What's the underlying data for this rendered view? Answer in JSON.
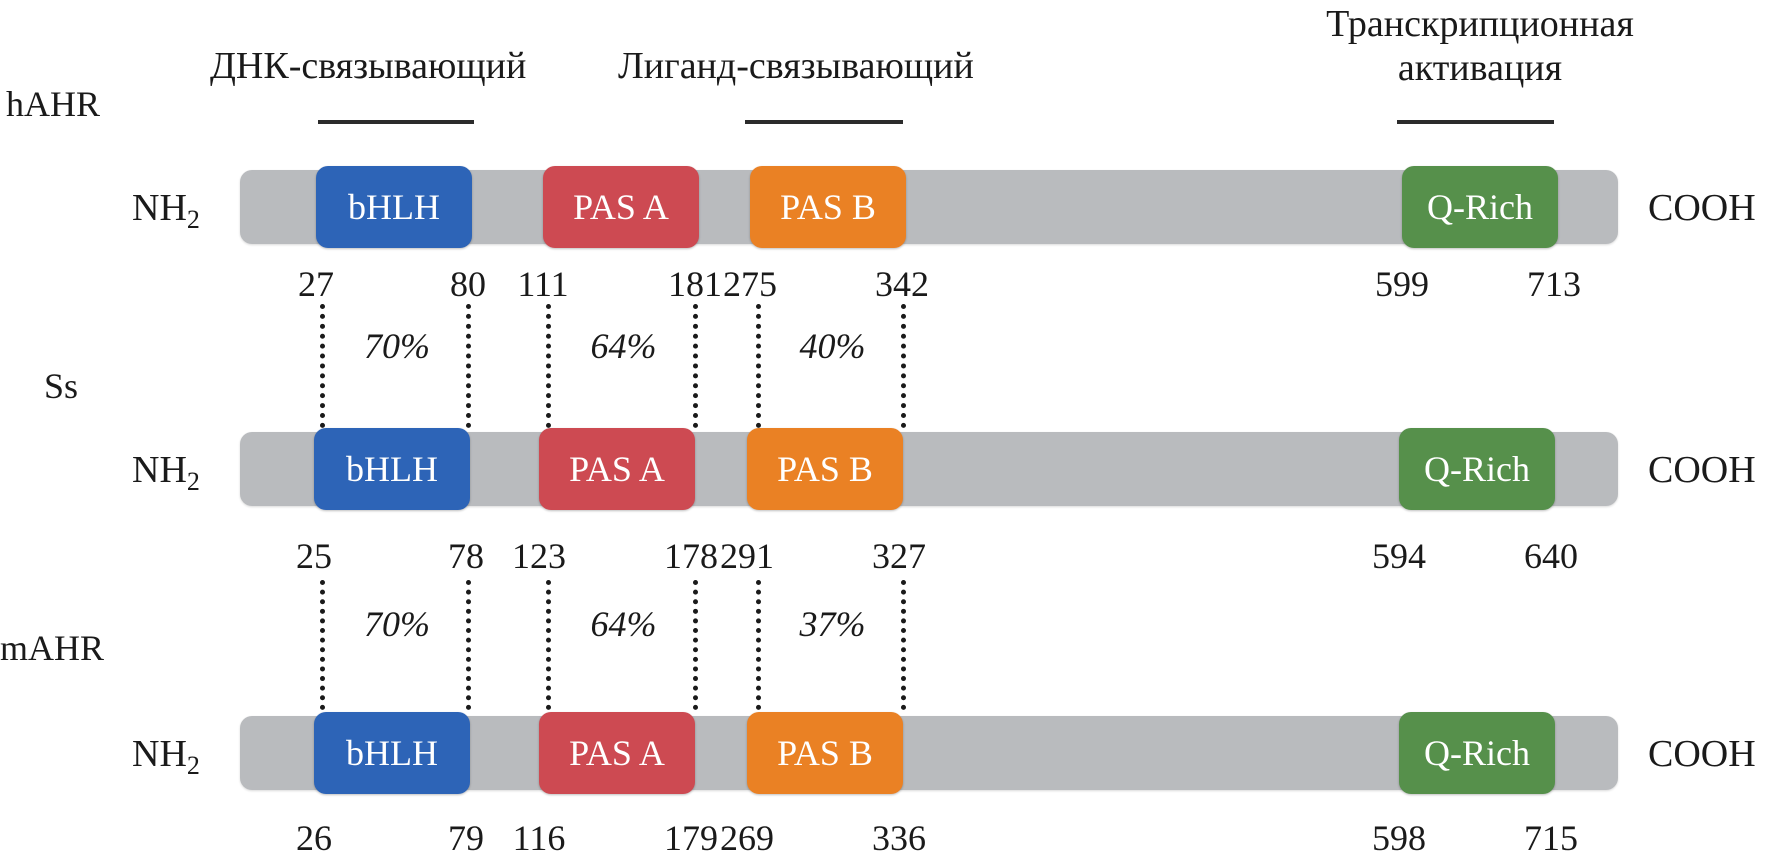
{
  "colors": {
    "protein_bar": "#b9bbbe",
    "bHLH": "#2d64b7",
    "PAS_A": "#cd4a52",
    "PAS_B": "#ea8124",
    "Q_Rich": "#56904b",
    "region_line": "#2b2b2b"
  },
  "regions": {
    "dna_binding": "ДНК-связывающий",
    "ligand_binding": "Лиганд-связывающий",
    "transcription_line1": "Транскрипционная",
    "transcription_line2": "активация"
  },
  "species": [
    "hAHR",
    "Ss",
    "mAHR"
  ],
  "terminals": {
    "n": "NH",
    "n_sub": "2",
    "c": "COOH"
  },
  "domains": [
    "bHLH",
    "PAS A",
    "PAS B",
    "Q-Rich"
  ],
  "proteins": [
    {
      "positions": [
        {
          "domain": "bHLH",
          "start": "27",
          "end": "80"
        },
        {
          "domain": "PAS A",
          "start": "111",
          "end": "181"
        },
        {
          "domain": "PAS B",
          "start": "275",
          "end": "342"
        },
        {
          "domain": "Q-Rich",
          "start": "599",
          "end": "713"
        }
      ]
    },
    {
      "positions": [
        {
          "domain": "bHLH",
          "start": "25",
          "end": "78"
        },
        {
          "domain": "PAS A",
          "start": "123",
          "end": "178"
        },
        {
          "domain": "PAS B",
          "start": "291",
          "end": "327"
        },
        {
          "domain": "Q-Rich",
          "start": "594",
          "end": "640"
        }
      ]
    },
    {
      "positions": [
        {
          "domain": "bHLH",
          "start": "26",
          "end": "79"
        },
        {
          "domain": "PAS A",
          "start": "116",
          "end": "179"
        },
        {
          "domain": "PAS B",
          "start": "269",
          "end": "336"
        },
        {
          "domain": "Q-Rich",
          "start": "598",
          "end": "715"
        }
      ]
    }
  ],
  "identity": [
    {
      "bHLH": "70%",
      "PAS A": "64%",
      "PAS B": "40%"
    },
    {
      "bHLH": "70%",
      "PAS A": "64%",
      "PAS B": "37%"
    }
  ]
}
